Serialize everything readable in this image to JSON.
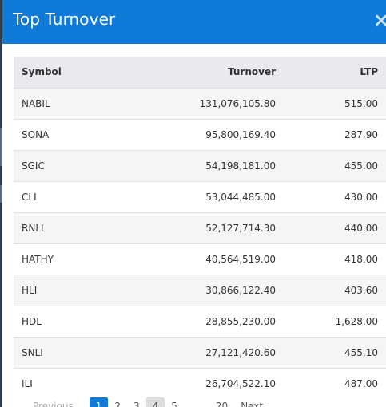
{
  "modal": {
    "title": "Top Turnover",
    "close_symbol": "×"
  },
  "table": {
    "headers": {
      "symbol": "Symbol",
      "turnover": "Turnover",
      "ltp": "LTP"
    },
    "rows": [
      {
        "symbol": "NABIL",
        "turnover": "131,076,105.80",
        "ltp": "515.00"
      },
      {
        "symbol": "SONA",
        "turnover": "95,800,169.40",
        "ltp": "287.90"
      },
      {
        "symbol": "SGIC",
        "turnover": "54,198,181.00",
        "ltp": "455.00"
      },
      {
        "symbol": "CLI",
        "turnover": "53,044,485.00",
        "ltp": "430.00"
      },
      {
        "symbol": "RNLI",
        "turnover": "52,127,714.30",
        "ltp": "440.00"
      },
      {
        "symbol": "HATHY",
        "turnover": "40,564,519.00",
        "ltp": "418.00"
      },
      {
        "symbol": "HLI",
        "turnover": "30,866,122.40",
        "ltp": "403.60"
      },
      {
        "symbol": "HDL",
        "turnover": "28,855,230.00",
        "ltp": "1,628.00"
      },
      {
        "symbol": "SNLI",
        "turnover": "27,121,420.60",
        "ltp": "455.10"
      },
      {
        "symbol": "ILI",
        "turnover": "26,704,522.10",
        "ltp": "487.00"
      }
    ]
  },
  "pagination": {
    "previous": "Previous",
    "pages": [
      "1",
      "2",
      "3",
      "4",
      "5"
    ],
    "active_page": "1",
    "ellipsis": "…",
    "last": "20",
    "next": "Next"
  },
  "colors": {
    "header_bg": "#0f7ad8",
    "thead_bg": "#e8eaed",
    "striped_row": "#f5f5f5"
  }
}
